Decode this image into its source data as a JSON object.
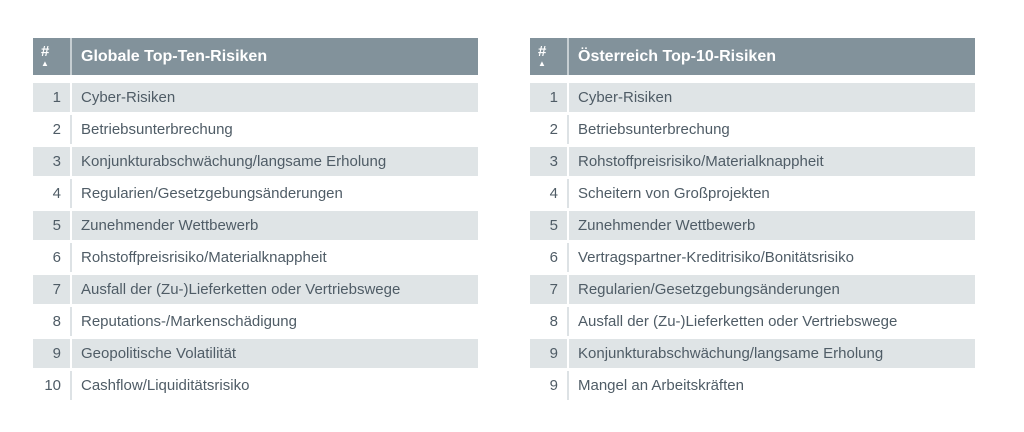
{
  "style": {
    "page_bg": "#FFFFFF",
    "header_bg": "#82929B",
    "header_text": "#FFFFFF",
    "row_alt_bg": "#DFE4E6",
    "row_bg": "#FFFFFF",
    "row_text": "#4F5C66",
    "divider_on_alt": "#FFFFFF",
    "divider_on_white": "#DDE2E5"
  },
  "chart_data": [
    {
      "type": "table",
      "title": "Globale Top-Ten-Risiken",
      "rank_header": "#",
      "sort_icon": "▲",
      "rows": [
        [
          "1",
          "Cyber-Risiken"
        ],
        [
          "2",
          "Betriebsunterbrechung"
        ],
        [
          "3",
          "Konjunkturabschwächung/langsame Erholung"
        ],
        [
          "4",
          "Regularien/Gesetzgebungsänderungen"
        ],
        [
          "5",
          "Zunehmender Wettbewerb"
        ],
        [
          "6",
          "Rohstoffpreisrisiko/Materialknappheit"
        ],
        [
          "7",
          "Ausfall der (Zu-)Lieferketten oder Vertriebswege"
        ],
        [
          "8",
          "Reputations-/Markenschädigung"
        ],
        [
          "9",
          "Geopolitische Volatilität"
        ],
        [
          "10",
          "Cashflow/Liquiditätsrisiko"
        ]
      ]
    },
    {
      "type": "table",
      "title": "Österreich Top-10-Risiken",
      "rank_header": "#",
      "sort_icon": "▲",
      "rows": [
        [
          "1",
          "Cyber-Risiken"
        ],
        [
          "2",
          "Betriebsunterbrechung"
        ],
        [
          "3",
          "Rohstoffpreisrisiko/Materialknappheit"
        ],
        [
          "4",
          "Scheitern von Großprojekten"
        ],
        [
          "5",
          "Zunehmender Wettbewerb"
        ],
        [
          "6",
          "Vertragspartner-Kreditrisiko/Bonitätsrisiko"
        ],
        [
          "7",
          "Regularien/Gesetzgebungsänderungen"
        ],
        [
          "8",
          "Ausfall der (Zu-)Lieferketten oder Vertriebswege"
        ],
        [
          "9",
          "Konjunkturabschwächung/langsame Erholung"
        ],
        [
          "9",
          "Mangel an Arbeitskräften"
        ]
      ]
    }
  ]
}
